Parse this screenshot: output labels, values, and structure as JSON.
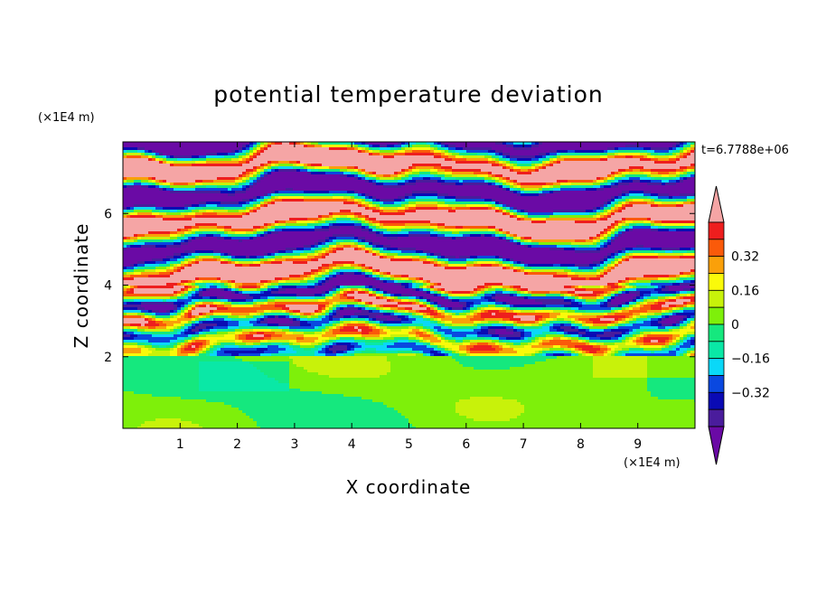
{
  "chart_data": {
    "type": "heatmap",
    "title": "potential temperature deviation",
    "xlabel": "X coordinate",
    "ylabel": "Z coordinate",
    "x_unit": "(×1E4 m)",
    "y_unit": "(×1E4 m)",
    "time_label": "t=6.7788e+06",
    "xlim": [
      0,
      10
    ],
    "ylim": [
      0,
      8
    ],
    "x_ticks": [
      "1",
      "2",
      "3",
      "4",
      "5",
      "6",
      "7",
      "8",
      "9"
    ],
    "y_ticks": [
      "2",
      "4",
      "6"
    ],
    "colorbar": {
      "levels": [
        -0.48,
        -0.4,
        -0.32,
        -0.24,
        -0.16,
        -0.08,
        0,
        0.08,
        0.16,
        0.24,
        0.32,
        0.4,
        0.48
      ],
      "tick_labels": [
        "0.32",
        "0.16",
        "0",
        "−0.16",
        "−0.32"
      ],
      "tick_values": [
        0.32,
        0.16,
        0,
        -0.16,
        -0.32
      ],
      "colors": [
        "#6a0aa5",
        "#4a1c9c",
        "#0a0ab4",
        "#0a48e0",
        "#0ad8f8",
        "#0ae8a6",
        "#15e87e",
        "#7ef00a",
        "#c8f20a",
        "#fafa0a",
        "#faa00a",
        "#fa5a0a",
        "#ee1e1e",
        "#f5a5a5"
      ],
      "extend": "both"
    },
    "field_description_layers": [
      {
        "z_range": [
          0,
          2
        ],
        "dominant": "green (near 0)"
      },
      {
        "z_range": [
          2,
          4
        ],
        "dominant": "mixed cyan/yellow/blue turbulence"
      },
      {
        "z_range": [
          4,
          8
        ],
        "dominant": "alternating pink (>0.4) and purple (<-0.4) bands"
      }
    ]
  }
}
